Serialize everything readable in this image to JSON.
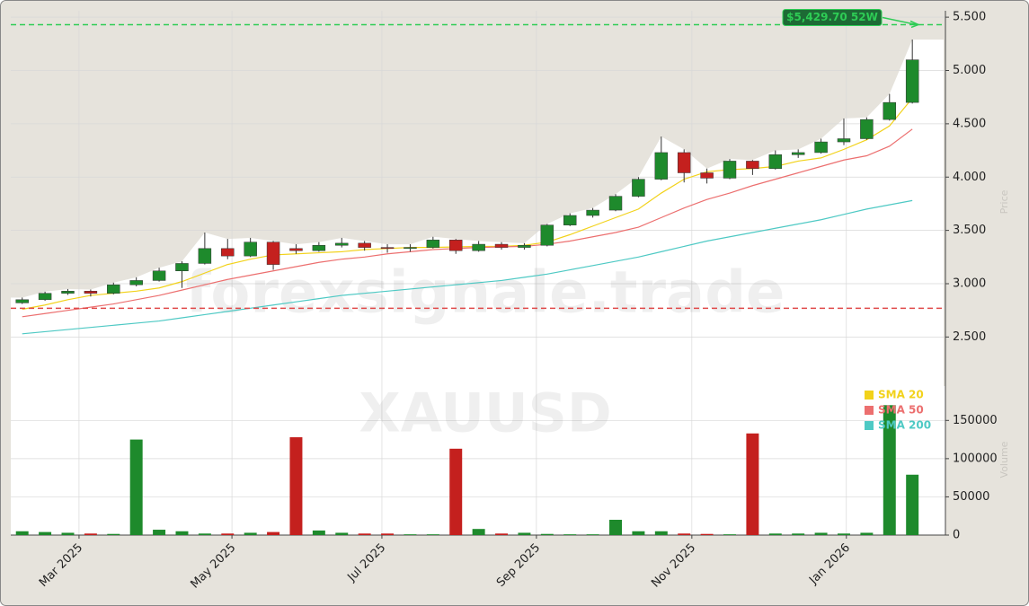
{
  "chart_data": {
    "type": "candlestick",
    "watermark": "forexsignale.trade",
    "symbol": "XAUUSD",
    "y_label": "Price",
    "y2_label": "Volume",
    "categories": [
      null,
      null,
      null,
      null,
      null,
      null,
      null,
      null,
      null,
      null,
      null,
      null,
      null,
      null,
      null,
      null,
      null,
      null,
      null,
      null,
      null,
      null,
      null,
      null,
      null,
      null,
      null,
      null,
      null,
      null,
      null,
      null,
      null,
      null,
      null,
      null,
      null,
      null,
      null,
      null
    ],
    "xlim": [
      -0.5,
      40.45
    ],
    "xticks": [
      {
        "value": 2.49,
        "label": "Mar 2025"
      },
      {
        "value": 9.19,
        "label": "May 2025"
      },
      {
        "value": 15.76,
        "label": "Jul 2025"
      },
      {
        "value": 22.53,
        "label": "Sep 2025"
      },
      {
        "value": 29.34,
        "label": "Nov 2025"
      },
      {
        "value": 36.11,
        "label": "Jan 2026"
      }
    ],
    "ylim": [
      2040,
      5560
    ],
    "yticks": [
      {
        "value": 2500,
        "label": "2.500"
      },
      {
        "value": 3000,
        "label": "3.000"
      },
      {
        "value": 3500,
        "label": "3.500"
      },
      {
        "value": 4000,
        "label": "4.000"
      },
      {
        "value": 4500,
        "label": "4.500"
      },
      {
        "value": 5000,
        "label": "5.000"
      },
      {
        "value": 5500,
        "label": "5.500"
      }
    ],
    "y2lim": [
      0,
      195000
    ],
    "y2ticks": [
      0,
      50000,
      100000,
      150000
    ],
    "grid": true,
    "up_color": "#1e8a2c",
    "down_color": "#c4201e",
    "ohlc": [
      [
        2820,
        2870,
        2810,
        2850
      ],
      [
        2850,
        2925,
        2840,
        2910
      ],
      [
        2910,
        2950,
        2895,
        2930
      ],
      [
        2930,
        2945,
        2880,
        2910
      ],
      [
        2910,
        3010,
        2900,
        2990
      ],
      [
        2990,
        3060,
        2975,
        3030
      ],
      [
        3030,
        3150,
        3020,
        3120
      ],
      [
        3120,
        3210,
        2960,
        3190
      ],
      [
        3190,
        3480,
        3180,
        3330
      ],
      [
        3330,
        3420,
        3230,
        3260
      ],
      [
        3260,
        3430,
        3250,
        3390
      ],
      [
        3390,
        3400,
        3130,
        3180
      ],
      [
        3330,
        3370,
        3280,
        3310
      ],
      [
        3310,
        3390,
        3300,
        3360
      ],
      [
        3360,
        3430,
        3340,
        3380
      ],
      [
        3380,
        3400,
        3310,
        3340
      ],
      [
        3340,
        3370,
        3290,
        3330
      ],
      [
        3330,
        3370,
        3300,
        3340
      ],
      [
        3340,
        3440,
        3330,
        3410
      ],
      [
        3410,
        3420,
        3280,
        3310
      ],
      [
        3310,
        3400,
        3300,
        3370
      ],
      [
        3370,
        3390,
        3320,
        3340
      ],
      [
        3340,
        3380,
        3320,
        3360
      ],
      [
        3360,
        3560,
        3350,
        3550
      ],
      [
        3550,
        3660,
        3540,
        3640
      ],
      [
        3640,
        3710,
        3620,
        3690
      ],
      [
        3690,
        3840,
        3680,
        3820
      ],
      [
        3820,
        4000,
        3810,
        3980
      ],
      [
        3980,
        4380,
        3970,
        4230
      ],
      [
        4230,
        4260,
        3950,
        4040
      ],
      [
        4040,
        4080,
        3940,
        3990
      ],
      [
        3990,
        4170,
        3980,
        4150
      ],
      [
        4150,
        4160,
        4020,
        4080
      ],
      [
        4080,
        4250,
        4070,
        4210
      ],
      [
        4210,
        4260,
        4180,
        4230
      ],
      [
        4230,
        4360,
        4220,
        4330
      ],
      [
        4330,
        4550,
        4300,
        4360
      ],
      [
        4360,
        4560,
        4350,
        4540
      ],
      [
        4540,
        4780,
        4530,
        4700
      ],
      [
        4700,
        5290,
        4690,
        5100
      ]
    ],
    "volume": [
      5000,
      4000,
      3000,
      2000,
      1500,
      125000,
      7000,
      5000,
      2000,
      2000,
      3000,
      4000,
      128000,
      6000,
      3000,
      2000,
      2000,
      1000,
      1000,
      113000,
      8000,
      2000,
      3000,
      1500,
      1000,
      1000,
      20000,
      5000,
      5000,
      2000,
      1500,
      1000,
      133000,
      2000,
      2000,
      3000,
      2000,
      3000,
      170000,
      79000
    ],
    "series": [
      {
        "name": "SMA 20",
        "color": "#f2d21b",
        "values": [
          2760,
          2800,
          2850,
          2890,
          2910,
          2930,
          2960,
          3020,
          3100,
          3180,
          3230,
          3270,
          3280,
          3290,
          3300,
          3320,
          3330,
          3340,
          3340,
          3345,
          3350,
          3350,
          3360,
          3390,
          3460,
          3540,
          3620,
          3700,
          3850,
          3980,
          4050,
          4070,
          4080,
          4100,
          4150,
          4180,
          4260,
          4350,
          4480,
          4740
        ]
      },
      {
        "name": "SMA 50",
        "color": "#ec6f6f",
        "values": [
          2690,
          2720,
          2750,
          2780,
          2810,
          2850,
          2890,
          2940,
          2990,
          3040,
          3080,
          3120,
          3160,
          3200,
          3230,
          3250,
          3280,
          3300,
          3320,
          3330,
          3340,
          3345,
          3350,
          3370,
          3400,
          3440,
          3480,
          3530,
          3620,
          3710,
          3790,
          3850,
          3920,
          3980,
          4040,
          4100,
          4160,
          4200,
          4290,
          4450
        ]
      },
      {
        "name": "SMA 200",
        "color": "#4ec9c4",
        "values": [
          2530,
          2550,
          2570,
          2590,
          2610,
          2630,
          2650,
          2680,
          2710,
          2740,
          2770,
          2800,
          2830,
          2860,
          2890,
          2910,
          2930,
          2950,
          2970,
          2990,
          3010,
          3030,
          3060,
          3090,
          3130,
          3170,
          3210,
          3250,
          3300,
          3350,
          3400,
          3440,
          3480,
          3520,
          3560,
          3600,
          3650,
          3700,
          3740,
          3780
        ]
      }
    ],
    "hlines": [
      {
        "value": 5429.7,
        "label": "$5,429.70 52W",
        "color": "#2ecc55"
      },
      {
        "value": 2770,
        "color": "#e04848"
      }
    ],
    "legend": "right"
  }
}
